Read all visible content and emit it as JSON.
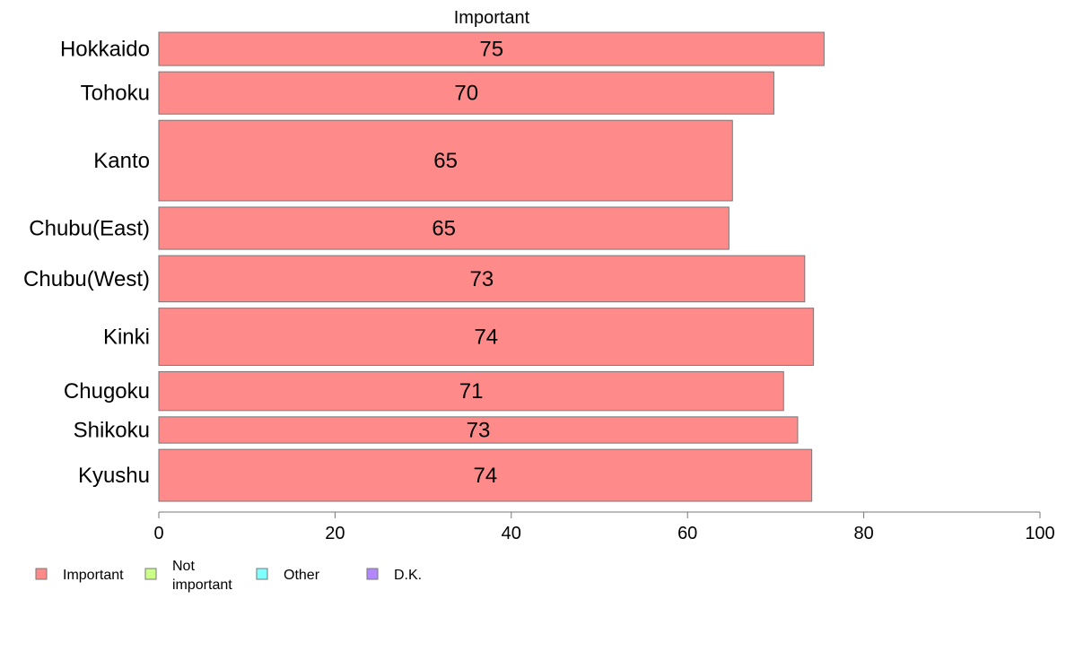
{
  "chart_data": {
    "type": "bar",
    "orientation": "horizontal",
    "title": "Important",
    "categories": [
      "Hokkaido",
      "Tohoku",
      "Kanto",
      "Chubu(East)",
      "Chubu(West)",
      "Kinki",
      "Chugoku",
      "Shikoku",
      "Kyushu"
    ],
    "series": [
      {
        "name": "Important",
        "color": "#ff8a8a",
        "values": [
          75.5,
          69.8,
          65.1,
          64.7,
          73.3,
          74.3,
          70.9,
          72.5,
          74.1
        ],
        "labels": [
          "75",
          "70",
          "65",
          "65",
          "73",
          "74",
          "71",
          "73",
          "74"
        ]
      }
    ],
    "xlim": [
      0,
      100
    ],
    "xticks": [
      0,
      20,
      40,
      60,
      80,
      100
    ],
    "bar_width_share": [
      1.0,
      1.27,
      2.42,
      1.27,
      1.39,
      1.72,
      1.17,
      0.79,
      1.56
    ],
    "grid": false,
    "legend": {
      "position": "bottom-left",
      "items": [
        {
          "label": "Important",
          "color": "#ff8a8a"
        },
        {
          "label": "Not important",
          "color": "#ccff88"
        },
        {
          "label": "Other",
          "color": "#80ffff"
        },
        {
          "label": "D.K.",
          "color": "#b388ff"
        }
      ]
    }
  }
}
